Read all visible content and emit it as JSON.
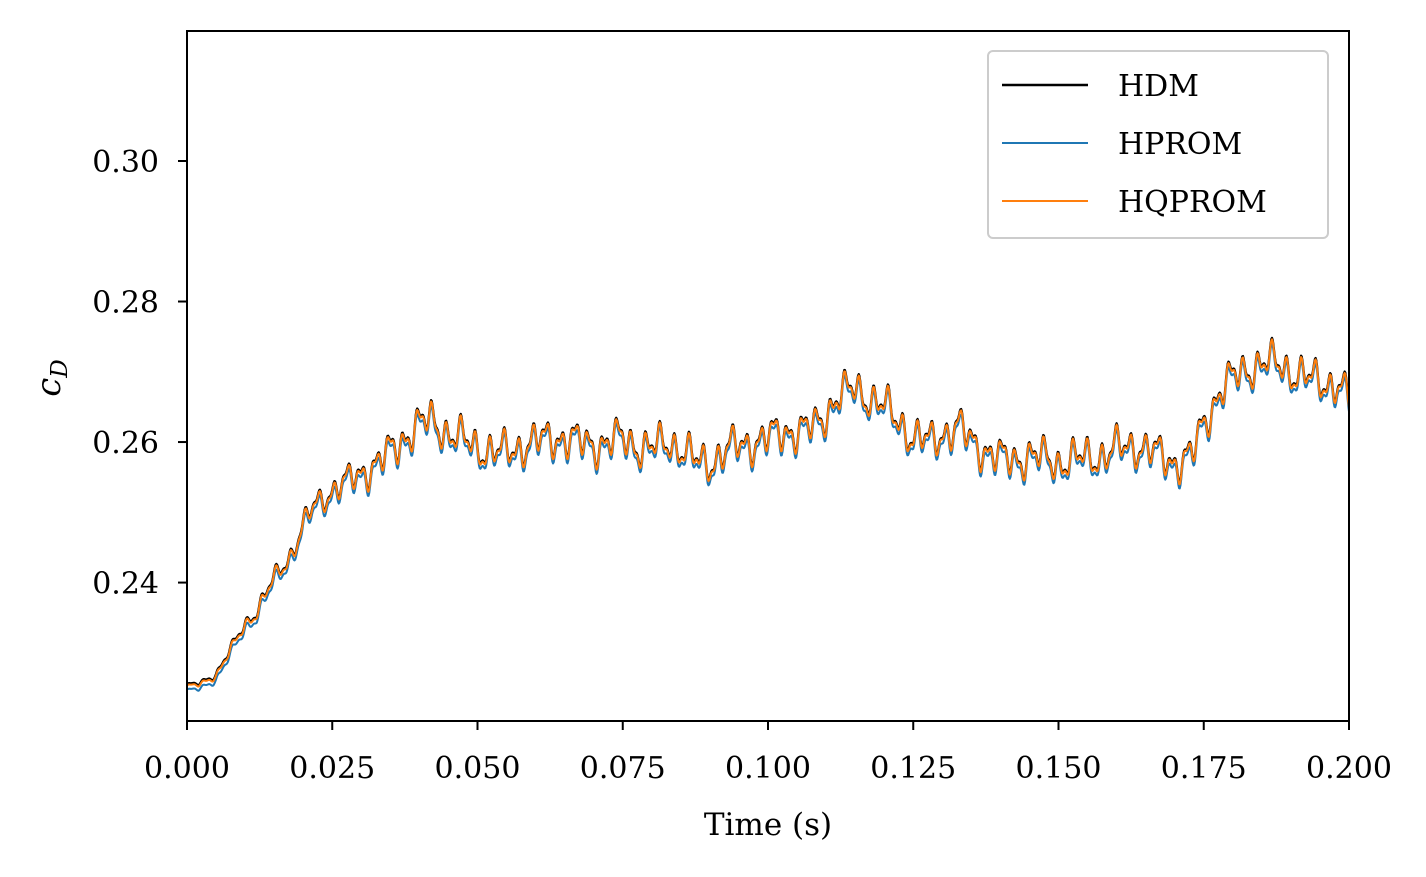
{
  "chart_data": {
    "type": "line",
    "title": "",
    "xlabel": "Time (s)",
    "ylabel": "c_D",
    "xlim": [
      0.0,
      0.2
    ],
    "ylim": [
      0.2203,
      0.3185
    ],
    "xticks": [
      "0.000",
      "0.025",
      "0.050",
      "0.075",
      "0.100",
      "0.125",
      "0.150",
      "0.175",
      "0.200"
    ],
    "yticks": [
      "0.24",
      "0.26",
      "0.28",
      "0.30"
    ],
    "legend_position": "top-right",
    "grid": false,
    "series": [
      {
        "name": "HDM",
        "color": "#000000"
      },
      {
        "name": "HPROM",
        "color": "#1f77b4"
      },
      {
        "name": "HQPROM",
        "color": "#ff7f0e"
      }
    ],
    "base_curve": {
      "x": [
        0.0,
        0.002,
        0.005,
        0.008,
        0.01,
        0.012,
        0.015,
        0.018,
        0.02,
        0.022,
        0.025,
        0.028,
        0.03,
        0.033,
        0.035,
        0.038,
        0.04,
        0.042,
        0.045,
        0.048,
        0.05,
        0.053,
        0.055,
        0.058,
        0.06,
        0.063,
        0.065,
        0.068,
        0.07,
        0.073,
        0.075,
        0.078,
        0.08,
        0.083,
        0.085,
        0.088,
        0.09,
        0.093,
        0.095,
        0.098,
        0.1,
        0.103,
        0.105,
        0.108,
        0.11,
        0.112,
        0.115,
        0.118,
        0.12,
        0.123,
        0.125,
        0.128,
        0.13,
        0.133,
        0.135,
        0.138,
        0.14,
        0.143,
        0.145,
        0.148,
        0.15,
        0.153,
        0.155,
        0.158,
        0.16,
        0.163,
        0.165,
        0.168,
        0.17,
        0.173,
        0.175,
        0.178,
        0.18,
        0.183,
        0.185,
        0.188,
        0.19,
        0.193,
        0.195,
        0.198,
        0.2
      ],
      "y": [
        0.2253,
        0.2254,
        0.2268,
        0.231,
        0.234,
        0.2358,
        0.2405,
        0.244,
        0.248,
        0.251,
        0.253,
        0.2545,
        0.2555,
        0.257,
        0.2585,
        0.261,
        0.2625,
        0.263,
        0.2612,
        0.26,
        0.2592,
        0.2585,
        0.2585,
        0.2595,
        0.26,
        0.2605,
        0.2605,
        0.2598,
        0.2595,
        0.26,
        0.2605,
        0.2592,
        0.259,
        0.26,
        0.259,
        0.257,
        0.257,
        0.2588,
        0.2595,
        0.26,
        0.2605,
        0.2615,
        0.2615,
        0.262,
        0.264,
        0.2665,
        0.2675,
        0.266,
        0.265,
        0.2625,
        0.2605,
        0.26,
        0.2612,
        0.262,
        0.26,
        0.2585,
        0.2575,
        0.2575,
        0.258,
        0.2575,
        0.257,
        0.2575,
        0.2578,
        0.258,
        0.259,
        0.2595,
        0.259,
        0.2578,
        0.257,
        0.258,
        0.2625,
        0.2675,
        0.269,
        0.2705,
        0.2712,
        0.271,
        0.27,
        0.269,
        0.2685,
        0.2682,
        0.266
      ]
    },
    "oscillation": {
      "period_s": 0.00245,
      "amplitude_start": 0.0002,
      "amplitude_full": 0.003,
      "full_amplitude_from_s": 0.035
    },
    "offsets": {
      "HDM": 0.0002,
      "HPROM": -0.0006,
      "HQPROM": 0.0
    }
  }
}
